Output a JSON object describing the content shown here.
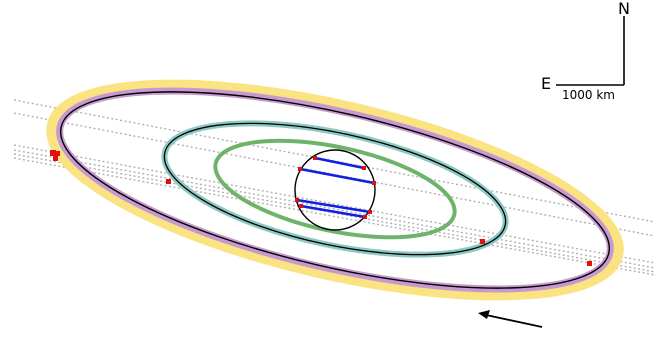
{
  "compass": {
    "north_label": "N",
    "east_label": "E",
    "scale_label": "1000 km"
  },
  "colors": {
    "outer_halo": "#fbe27a",
    "outer_ring": "#c69ad0",
    "teal_ring": "#8ec8c4",
    "green_ring": "#6db46a",
    "body_outline": "#000000",
    "chord": "#1020e0",
    "contact_point": "#e01010",
    "track_line": "#b0b0b0"
  },
  "elements": [
    "outer-halo-ring",
    "outer-purple-ring",
    "teal-ring",
    "green-ring",
    "central-body",
    "occultation-chords",
    "contact-points",
    "observer-tracks",
    "motion-direction-arrow",
    "compass-rose",
    "scale-bar"
  ]
}
